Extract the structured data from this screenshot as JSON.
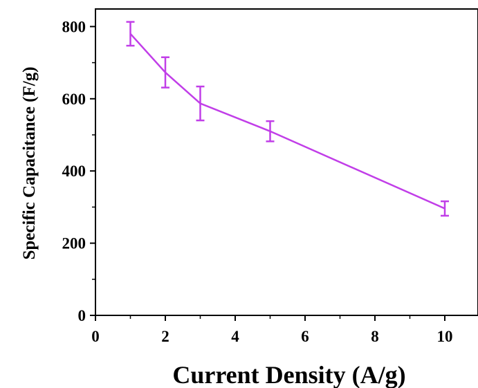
{
  "chart_data": {
    "type": "line",
    "title": "",
    "xlabel": "Current Density (A/g)",
    "ylabel": "Specific Capacitance (F/g)",
    "xlim": [
      0,
      11
    ],
    "ylim": [
      0,
      850
    ],
    "x_ticks": [
      "0",
      "2",
      "4",
      "6",
      "8",
      "10"
    ],
    "y_ticks": [
      "0",
      "200",
      "400",
      "600",
      "800"
    ],
    "x_tick_values": [
      0,
      2,
      4,
      6,
      8,
      10
    ],
    "y_tick_values": [
      0,
      200,
      400,
      600,
      800
    ],
    "grid": false,
    "legend": "none",
    "series": [
      {
        "x": [
          1,
          2,
          3,
          5,
          10
        ],
        "y": [
          780,
          673,
          587,
          510,
          296
        ],
        "error": [
          33,
          42,
          47,
          28,
          20
        ],
        "color": "#c13ee8"
      }
    ]
  }
}
